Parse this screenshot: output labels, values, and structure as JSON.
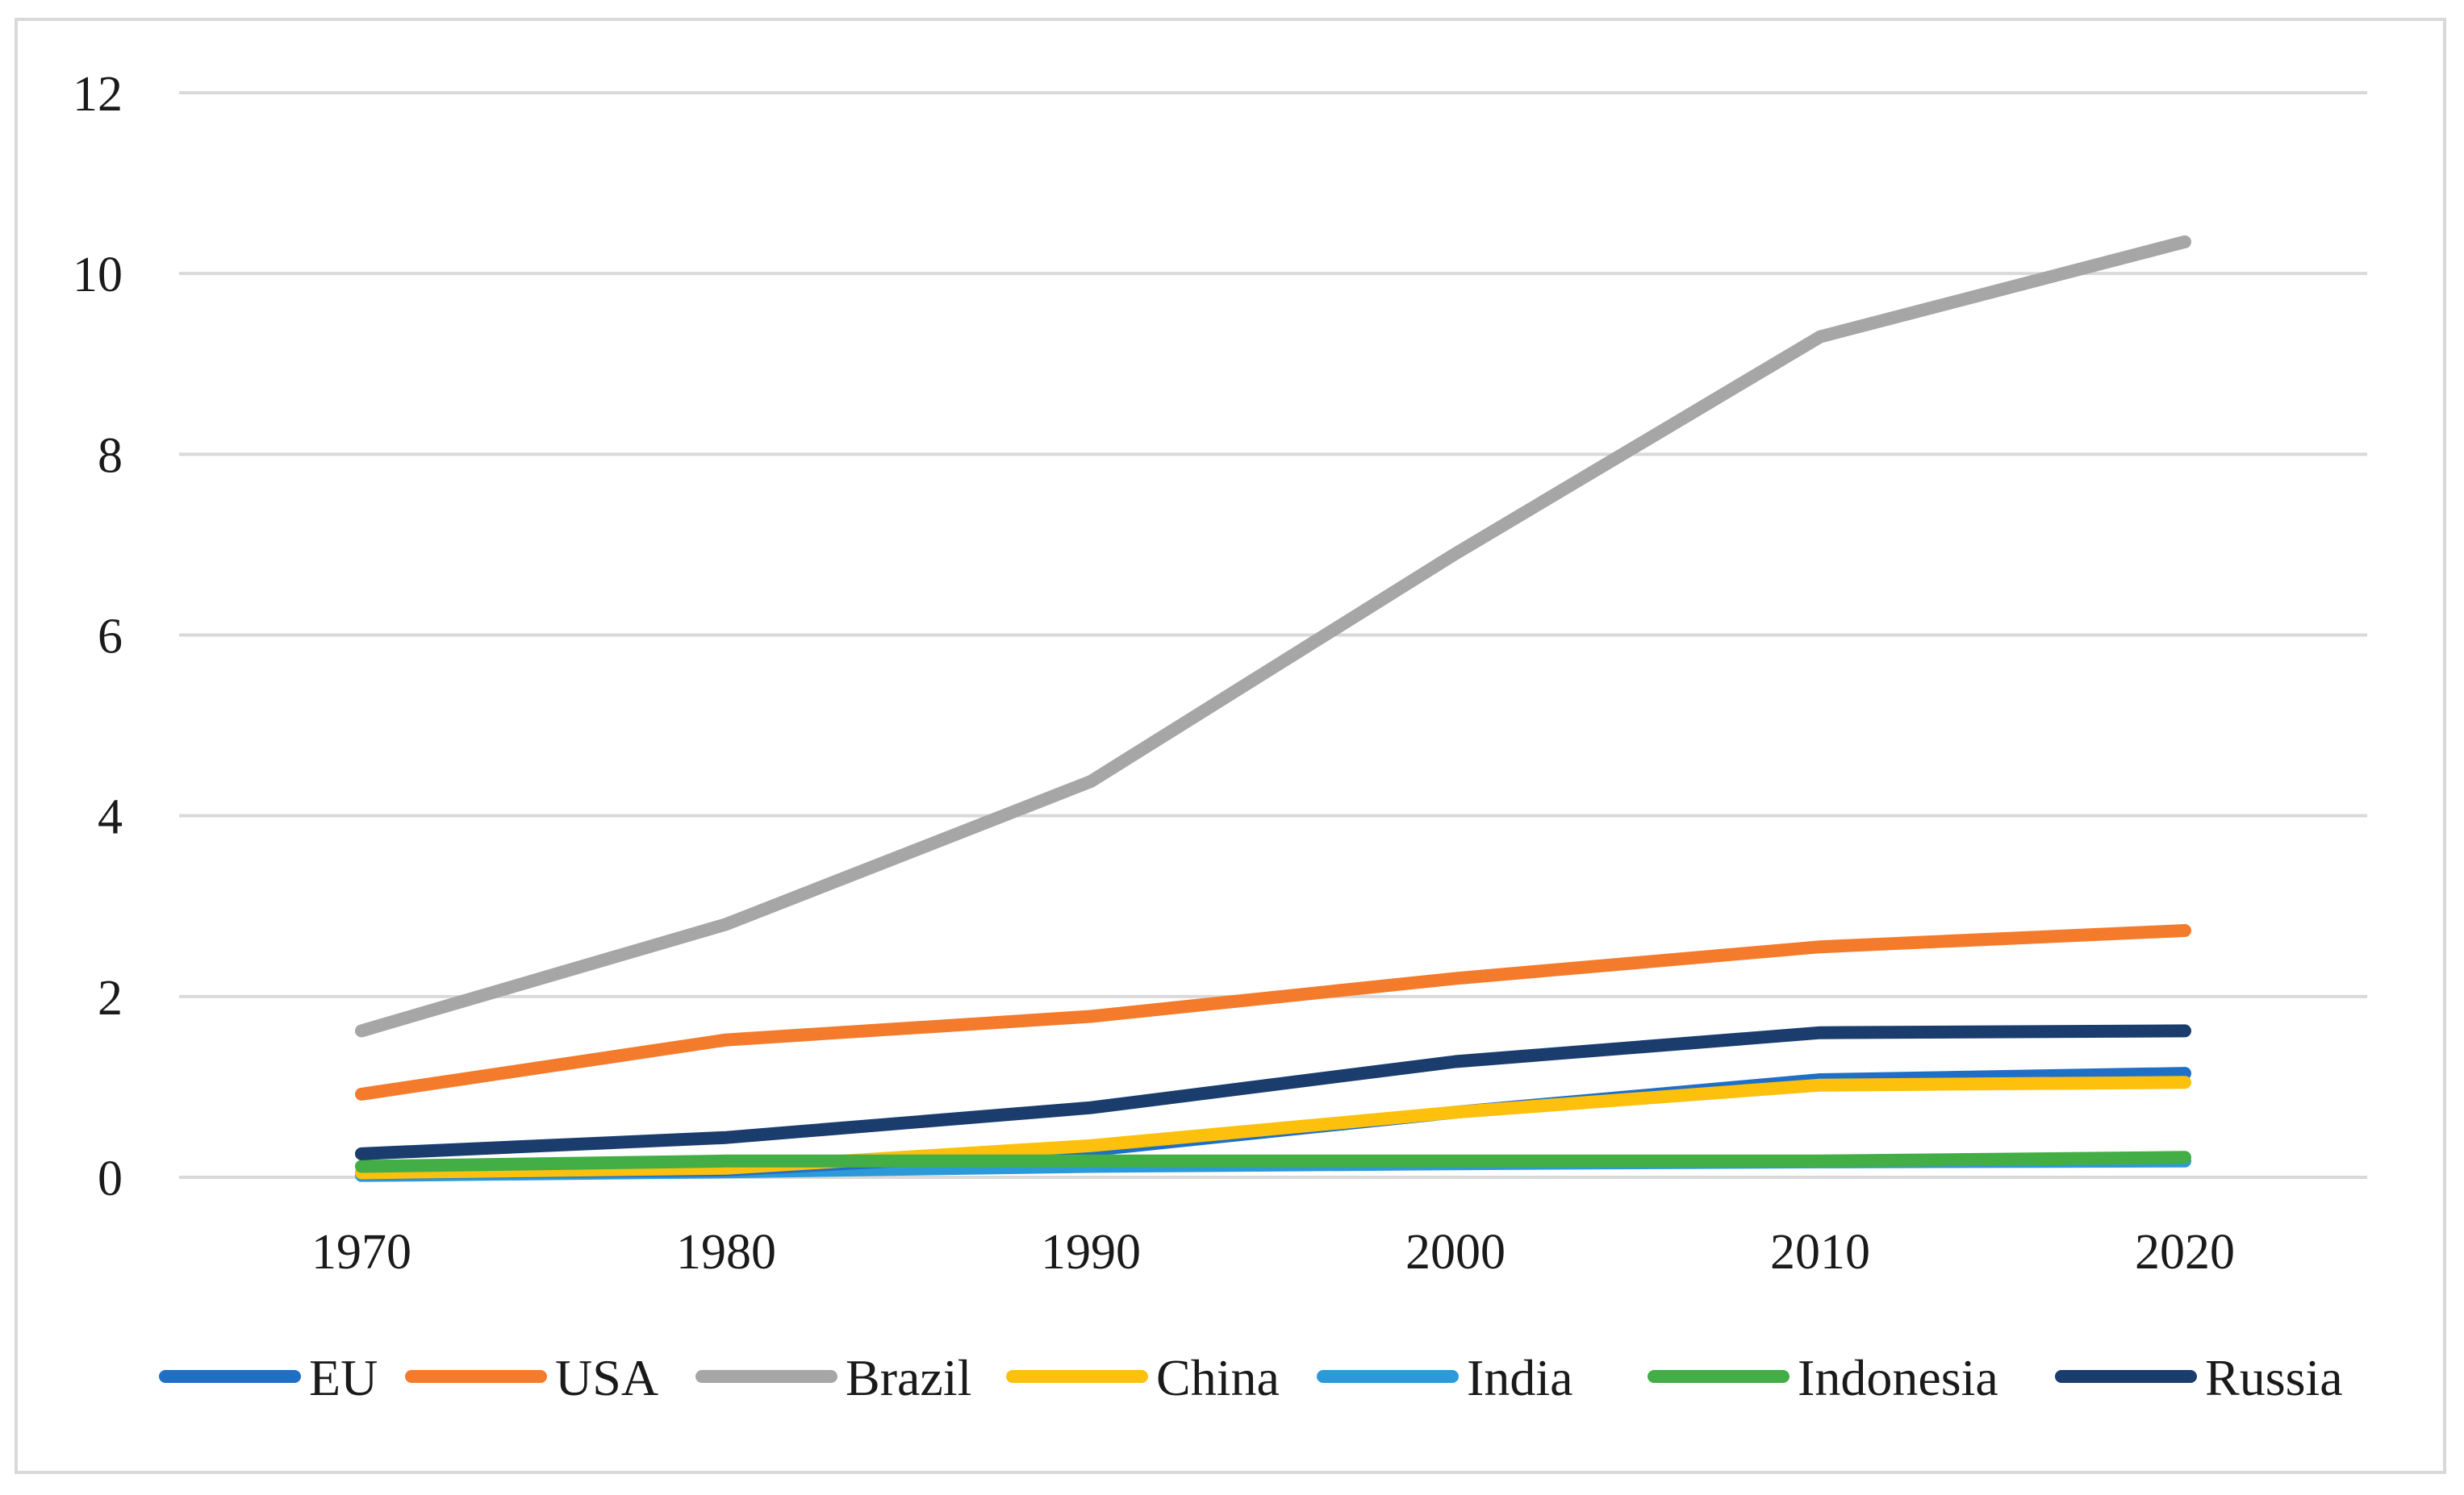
{
  "chart_data": {
    "type": "line",
    "title": "",
    "xlabel": "",
    "ylabel": "",
    "x": [
      "1970",
      "1980",
      "1990",
      "2000",
      "2010",
      "2020"
    ],
    "ylim": [
      0,
      12
    ],
    "yticks": [
      "0",
      "2",
      "4",
      "6",
      "8",
      "10",
      "12"
    ],
    "grid": true,
    "legend_position": "bottom",
    "series": [
      {
        "name": "EU",
        "color": "#1f6fc6",
        "values": [
          0.05,
          0.08,
          0.3,
          0.72,
          1.08,
          1.15
        ]
      },
      {
        "name": "USA",
        "color": "#f47b2c",
        "values": [
          0.92,
          1.52,
          1.78,
          2.2,
          2.55,
          2.73
        ]
      },
      {
        "name": "Brazil",
        "color": "#a6a6a6",
        "values": [
          1.62,
          2.8,
          4.38,
          6.9,
          9.3,
          10.35
        ]
      },
      {
        "name": "China",
        "color": "#fcc00d",
        "values": [
          0.05,
          0.1,
          0.35,
          0.72,
          1.02,
          1.05
        ]
      },
      {
        "name": "India",
        "color": "#2c9ad8",
        "values": [
          0.02,
          0.06,
          0.12,
          0.15,
          0.17,
          0.18
        ]
      },
      {
        "name": "Indonesia",
        "color": "#43ad46",
        "values": [
          0.12,
          0.18,
          0.18,
          0.18,
          0.18,
          0.22
        ]
      },
      {
        "name": "Russia",
        "color": "#1a3d6e",
        "values": [
          0.26,
          0.44,
          0.77,
          1.28,
          1.6,
          1.62
        ]
      }
    ]
  }
}
